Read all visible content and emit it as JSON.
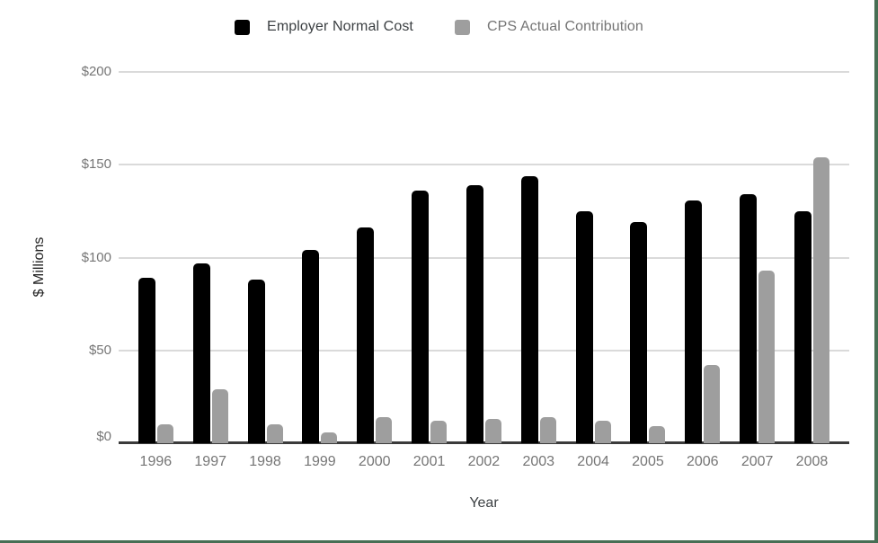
{
  "frame": {
    "border_color": "#476e54"
  },
  "chart_data": {
    "type": "bar",
    "title": "",
    "xlabel": "Year",
    "ylabel": "$ Millions",
    "categories": [
      "1996",
      "1997",
      "1998",
      "1999",
      "2000",
      "2001",
      "2002",
      "2003",
      "2004",
      "2005",
      "2006",
      "2007",
      "2008"
    ],
    "series": [
      {
        "name": "Employer Normal Cost",
        "color": "#000000",
        "legend_text_color": "#3c4043",
        "values": [
          89,
          97,
          88,
          104,
          116,
          136,
          139,
          144,
          125,
          119,
          131,
          134,
          125
        ]
      },
      {
        "name": "CPS Actual Contribution",
        "color": "#9e9e9e",
        "legend_text_color": "#757575",
        "values": [
          10,
          29,
          10,
          6,
          14,
          12,
          13,
          14,
          12,
          9,
          42,
          93,
          154
        ]
      }
    ],
    "ylim": [
      0,
      200
    ],
    "ytick_values": [
      0,
      50,
      100,
      150,
      200
    ],
    "ytick_labels": [
      "$0",
      "$50",
      "$100",
      "$150",
      "$200"
    ],
    "grid": true,
    "legend_position": "top",
    "axis_tick_color": "#757575",
    "gridline_color": "#dadada",
    "axis_line_color": "#3b3b3b"
  }
}
